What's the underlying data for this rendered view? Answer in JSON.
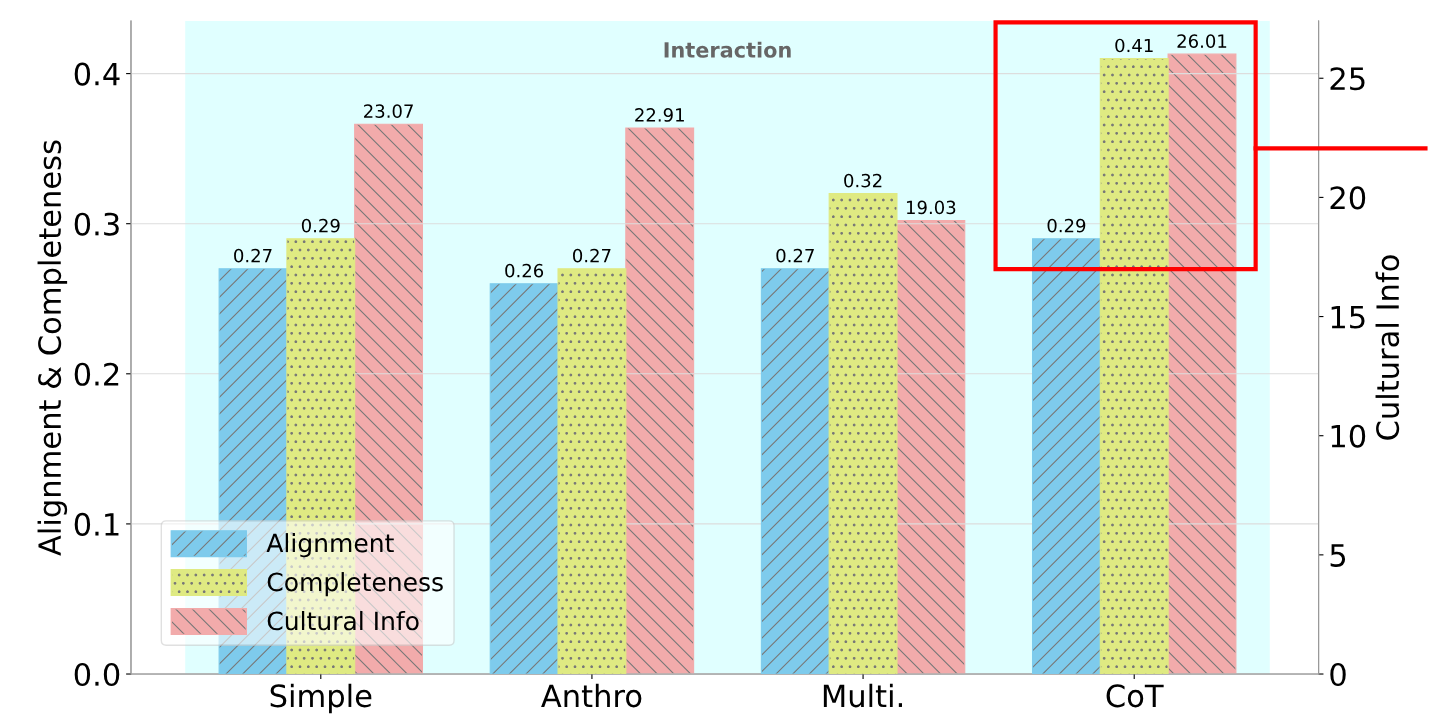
{
  "chart_data": {
    "type": "bar",
    "categories": [
      "Simple",
      "Anthro",
      "Multi.",
      "CoT"
    ],
    "ylabel": "Alignment & Completeness",
    "y2label": "Cultural Info",
    "series": [
      {
        "name": "Alignment",
        "color": "#7ecbec",
        "values": [
          0.27,
          0.26,
          0.27,
          0.29
        ]
      },
      {
        "name": "Completeness",
        "color": "#dfea82",
        "values": [
          0.29,
          0.27,
          0.32,
          0.41
        ]
      },
      {
        "name": "Cultural Info",
        "color": "#f2abab",
        "values": [
          23.07,
          22.91,
          19.03,
          26.01
        ],
        "axis": "y2"
      }
    ],
    "ylim": [
      0,
      0.435
    ],
    "yticks": [
      {
        "value": 0,
        "label": "0.0"
      },
      0.1,
      0.2,
      0.3,
      0.4
    ],
    "y2lim": [
      0,
      27.4
    ],
    "y2ticks": [
      0,
      5,
      10,
      15,
      20,
      25
    ],
    "annotations": [
      "Interaction"
    ],
    "data_labels": true,
    "grid": "y",
    "legend": "bottom left"
  }
}
